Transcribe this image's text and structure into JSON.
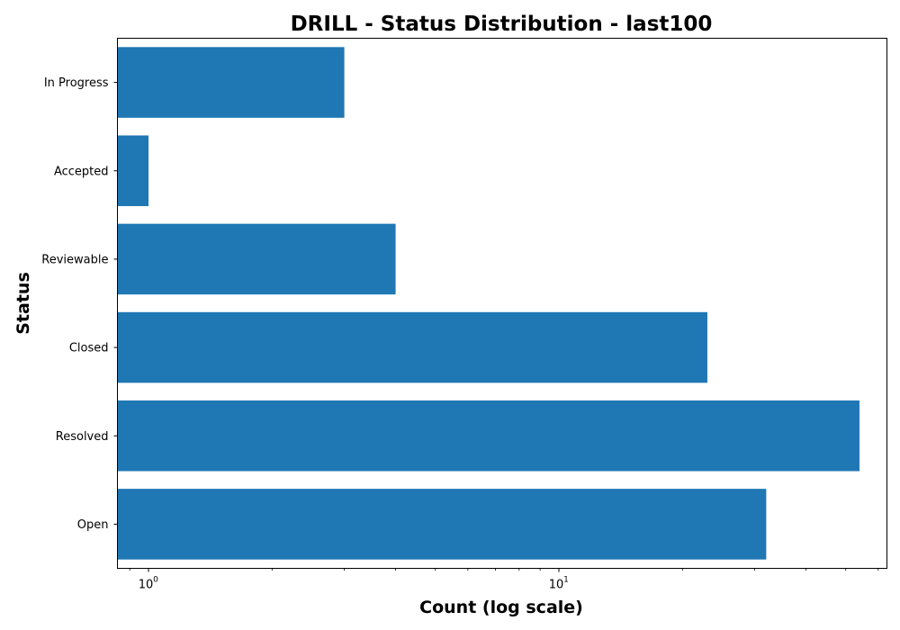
{
  "chart_data": {
    "type": "bar",
    "orientation": "horizontal",
    "title": "DRILL - Status Distribution - last100",
    "xlabel": "Count (log scale)",
    "ylabel": "Status",
    "x_scale": "log",
    "xlim": [
      0.84,
      63
    ],
    "x_major_ticks": [
      {
        "base": "10",
        "exponent": "0",
        "value": 1
      },
      {
        "base": "10",
        "exponent": "1",
        "value": 10
      }
    ],
    "categories": [
      "In Progress",
      "Accepted",
      "Reviewable",
      "Closed",
      "Resolved",
      "Open"
    ],
    "values": [
      3,
      1,
      4,
      23,
      54,
      32
    ],
    "bar_color": "#1f77b4",
    "grid": false,
    "legend": "none"
  }
}
